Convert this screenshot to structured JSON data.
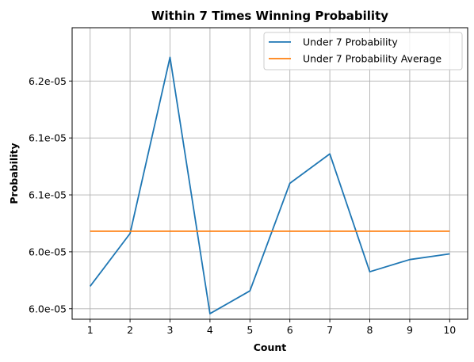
{
  "chart_data": {
    "type": "line",
    "title": "Within 7 Times Winning Probability",
    "xlabel": "Count",
    "ylabel": "Probability",
    "x": [
      1,
      2,
      3,
      4,
      5,
      6,
      7,
      8,
      9,
      10
    ],
    "xlim": [
      0.55,
      10.45
    ],
    "ylim": [
      5.9908e-05,
      6.2468e-05
    ],
    "x_ticks": [
      1,
      2,
      3,
      4,
      5,
      6,
      7,
      8,
      9,
      10
    ],
    "y_ticks": [
      {
        "value": 6e-05,
        "label": "6.0e-05"
      },
      {
        "value": 6.05e-05,
        "label": "6.0e-05"
      },
      {
        "value": 6.1e-05,
        "label": "6.1e-05"
      },
      {
        "value": 6.15e-05,
        "label": "6.1e-05"
      },
      {
        "value": 6.2e-05,
        "label": "6.2e-05"
      }
    ],
    "grid": true,
    "legend_position": "upper right",
    "series": [
      {
        "name": "  Under 7 Probability",
        "color": "#1f77b4",
        "values": [
          6.0197e-05,
          6.0661e-05,
          6.2208e-05,
          5.9957e-05,
          6.0157e-05,
          6.1102e-05,
          6.136e-05,
          6.0325e-05,
          6.0432e-05,
          6.0482e-05
        ]
      },
      {
        "name": "  Under 7 Probability Average",
        "color": "#ff7f0e",
        "values": [
          6.0681e-05,
          6.0681e-05,
          6.0681e-05,
          6.0681e-05,
          6.0681e-05,
          6.0681e-05,
          6.0681e-05,
          6.0681e-05,
          6.0681e-05,
          6.0681e-05
        ]
      }
    ]
  }
}
